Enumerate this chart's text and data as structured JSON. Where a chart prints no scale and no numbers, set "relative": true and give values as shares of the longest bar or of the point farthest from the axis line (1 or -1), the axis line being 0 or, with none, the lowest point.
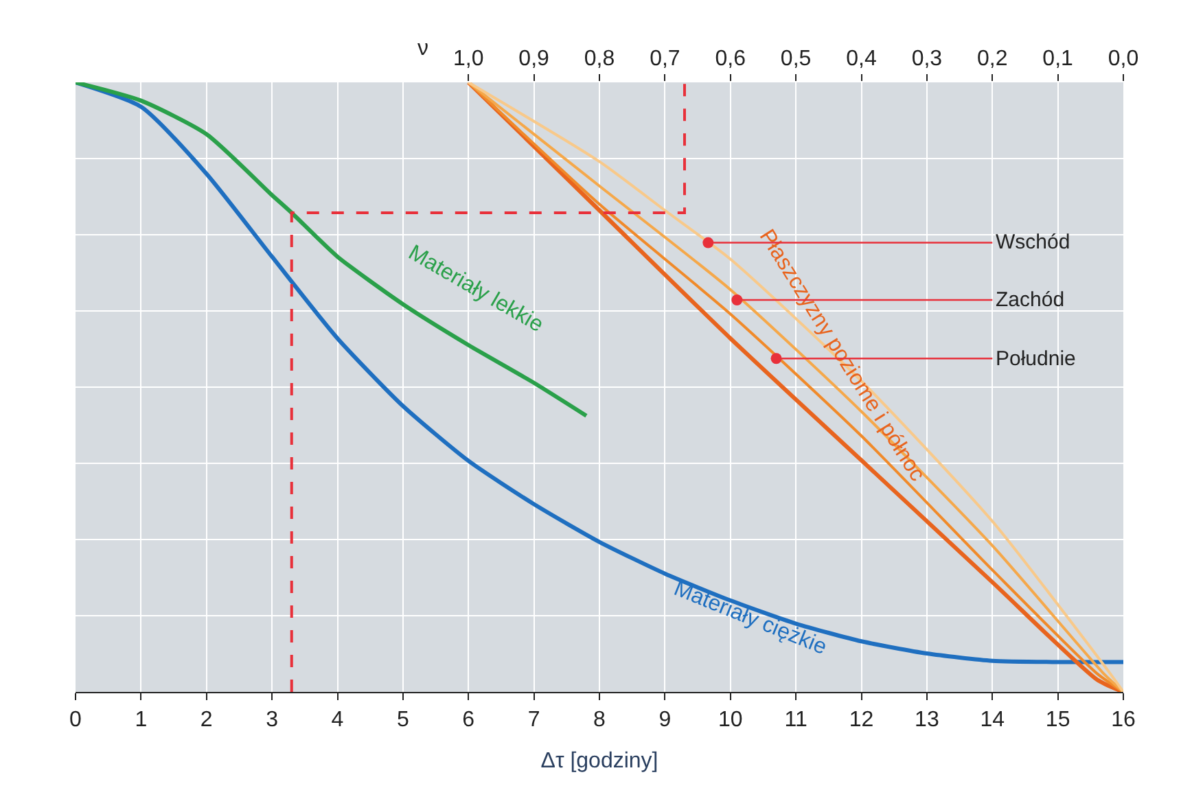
{
  "chart_data": {
    "type": "line",
    "relative": true,
    "xlabel": "Δτ [godziny]",
    "x2label": "ν",
    "xlim": [
      0,
      16
    ],
    "xticks": [
      0,
      1,
      2,
      3,
      4,
      5,
      6,
      7,
      8,
      9,
      10,
      11,
      12,
      13,
      14,
      15,
      16
    ],
    "x2lim": [
      1.6,
      0
    ],
    "x2ticks": [
      {
        "value": 1.0,
        "label": "1,0"
      },
      {
        "value": 0.9,
        "label": "0,9"
      },
      {
        "value": 0.8,
        "label": "0,8"
      },
      {
        "value": 0.7,
        "label": "0,7"
      },
      {
        "value": 0.6,
        "label": "0,6"
      },
      {
        "value": 0.5,
        "label": "0,5"
      },
      {
        "value": 0.4,
        "label": "0,4"
      },
      {
        "value": 0.3,
        "label": "0,3"
      },
      {
        "value": 0.2,
        "label": "0,2"
      },
      {
        "value": 0.1,
        "label": "0,1"
      },
      {
        "value": 0.0,
        "label": "0,0"
      }
    ],
    "tick_labels": "x",
    "grid": true,
    "marker": "none",
    "line_style": "solid",
    "series": [
      {
        "name": "Materiały ciężkie",
        "color": "#1f6fc0",
        "x": [
          0,
          1,
          2,
          3,
          4,
          5,
          6,
          7,
          8,
          9,
          10,
          11,
          12,
          13,
          14,
          15,
          16
        ],
        "values": [
          1.0,
          0.96,
          0.85,
          0.714,
          0.58,
          0.469,
          0.379,
          0.308,
          0.246,
          0.194,
          0.15,
          0.112,
          0.083,
          0.063,
          0.051,
          0.049,
          0.049
        ]
      },
      {
        "name": "Materiały lekkie",
        "color": "#2aa04a",
        "x": [
          0,
          1,
          2,
          3,
          3.3,
          4,
          5,
          6,
          7,
          7.8
        ],
        "values": [
          1.0,
          0.97,
          0.915,
          0.815,
          0.786,
          0.714,
          0.636,
          0.569,
          0.507,
          0.453
        ]
      },
      {
        "name": "Płaszczyzny poziome i północ",
        "color": "#e8641e",
        "x": [
          6,
          8,
          10,
          12,
          14,
          15.6,
          16
        ],
        "values": [
          1.0,
          0.79,
          0.58,
          0.38,
          0.18,
          0.02,
          0.0
        ]
      },
      {
        "color": "#f08a2a",
        "x": [
          6,
          8,
          10,
          12,
          14,
          15.6,
          16
        ],
        "values": [
          1.0,
          0.8,
          0.62,
          0.42,
          0.2,
          0.03,
          0.0
        ]
      },
      {
        "color": "#f5a84a",
        "x": [
          6,
          8,
          10,
          12,
          14,
          15.7,
          16
        ],
        "values": [
          1.0,
          0.83,
          0.66,
          0.46,
          0.24,
          0.03,
          0.0
        ]
      },
      {
        "color": "#f8c98a",
        "x": [
          6,
          8,
          9,
          10,
          12,
          14,
          15.8,
          16
        ],
        "values": [
          1.0,
          0.87,
          0.79,
          0.71,
          0.51,
          0.28,
          0.03,
          0.0
        ]
      },
      {
        "color": "#e8303a",
        "line_style": "dashed",
        "x": [
          3.3,
          3.3,
          9.3,
          9.3
        ],
        "values": [
          0.0,
          0.786,
          0.786,
          1.0
        ]
      }
    ],
    "annotations": [
      {
        "text": "Wschód",
        "x": 9.66,
        "y": 0.737
      },
      {
        "text": "Zachód",
        "x": 10.1,
        "y": 0.643
      },
      {
        "text": "Południe",
        "x": 10.7,
        "y": 0.547
      }
    ]
  }
}
